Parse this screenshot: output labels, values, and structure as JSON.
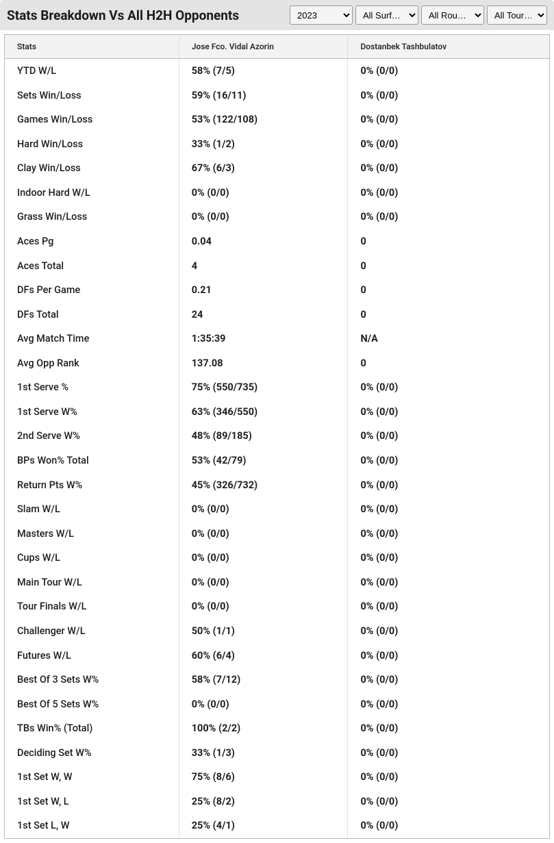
{
  "header": {
    "title": "Stats Breakdown Vs All H2H Opponents"
  },
  "filters": {
    "year": {
      "value": "2023",
      "options": [
        "2023"
      ]
    },
    "surface": {
      "value": "All Surf…",
      "options": [
        "All Surf…"
      ]
    },
    "round": {
      "value": "All Rou…",
      "options": [
        "All Rou…"
      ]
    },
    "tour": {
      "value": "All Tour…",
      "options": [
        "All Tour…"
      ]
    }
  },
  "table": {
    "columns": [
      "Stats",
      "Jose Fco. Vidal Azorin",
      "Dostanbek Tashbulatov"
    ],
    "rows": [
      [
        "YTD W/L",
        "58% (7/5)",
        "0% (0/0)"
      ],
      [
        "Sets Win/Loss",
        "59% (16/11)",
        "0% (0/0)"
      ],
      [
        "Games Win/Loss",
        "53% (122/108)",
        "0% (0/0)"
      ],
      [
        "Hard Win/Loss",
        "33% (1/2)",
        "0% (0/0)"
      ],
      [
        "Clay Win/Loss",
        "67% (6/3)",
        "0% (0/0)"
      ],
      [
        "Indoor Hard W/L",
        "0% (0/0)",
        "0% (0/0)"
      ],
      [
        "Grass Win/Loss",
        "0% (0/0)",
        "0% (0/0)"
      ],
      [
        "Aces Pg",
        "0.04",
        "0"
      ],
      [
        "Aces Total",
        "4",
        "0"
      ],
      [
        "DFs Per Game",
        "0.21",
        "0"
      ],
      [
        "DFs Total",
        "24",
        "0"
      ],
      [
        "Avg Match Time",
        "1:35:39",
        "N/A"
      ],
      [
        "Avg Opp Rank",
        "137.08",
        "0"
      ],
      [
        "1st Serve %",
        "75% (550/735)",
        "0% (0/0)"
      ],
      [
        "1st Serve W%",
        "63% (346/550)",
        "0% (0/0)"
      ],
      [
        "2nd Serve W%",
        "48% (89/185)",
        "0% (0/0)"
      ],
      [
        "BPs Won% Total",
        "53% (42/79)",
        "0% (0/0)"
      ],
      [
        "Return Pts W%",
        "45% (326/732)",
        "0% (0/0)"
      ],
      [
        "Slam W/L",
        "0% (0/0)",
        "0% (0/0)"
      ],
      [
        "Masters W/L",
        "0% (0/0)",
        "0% (0/0)"
      ],
      [
        "Cups W/L",
        "0% (0/0)",
        "0% (0/0)"
      ],
      [
        "Main Tour W/L",
        "0% (0/0)",
        "0% (0/0)"
      ],
      [
        "Tour Finals W/L",
        "0% (0/0)",
        "0% (0/0)"
      ],
      [
        "Challenger W/L",
        "50% (1/1)",
        "0% (0/0)"
      ],
      [
        "Futures W/L",
        "60% (6/4)",
        "0% (0/0)"
      ],
      [
        "Best Of 3 Sets W%",
        "58% (7/12)",
        "0% (0/0)"
      ],
      [
        "Best Of 5 Sets W%",
        "0% (0/0)",
        "0% (0/0)"
      ],
      [
        "TBs Win% (Total)",
        "100% (2/2)",
        "0% (0/0)"
      ],
      [
        "Deciding Set W%",
        "33% (1/3)",
        "0% (0/0)"
      ],
      [
        "1st Set W, W",
        "75% (8/6)",
        "0% (0/0)"
      ],
      [
        "1st Set W, L",
        "25% (8/2)",
        "0% (0/0)"
      ],
      [
        "1st Set L, W",
        "25% (4/1)",
        "0% (0/0)"
      ]
    ]
  }
}
